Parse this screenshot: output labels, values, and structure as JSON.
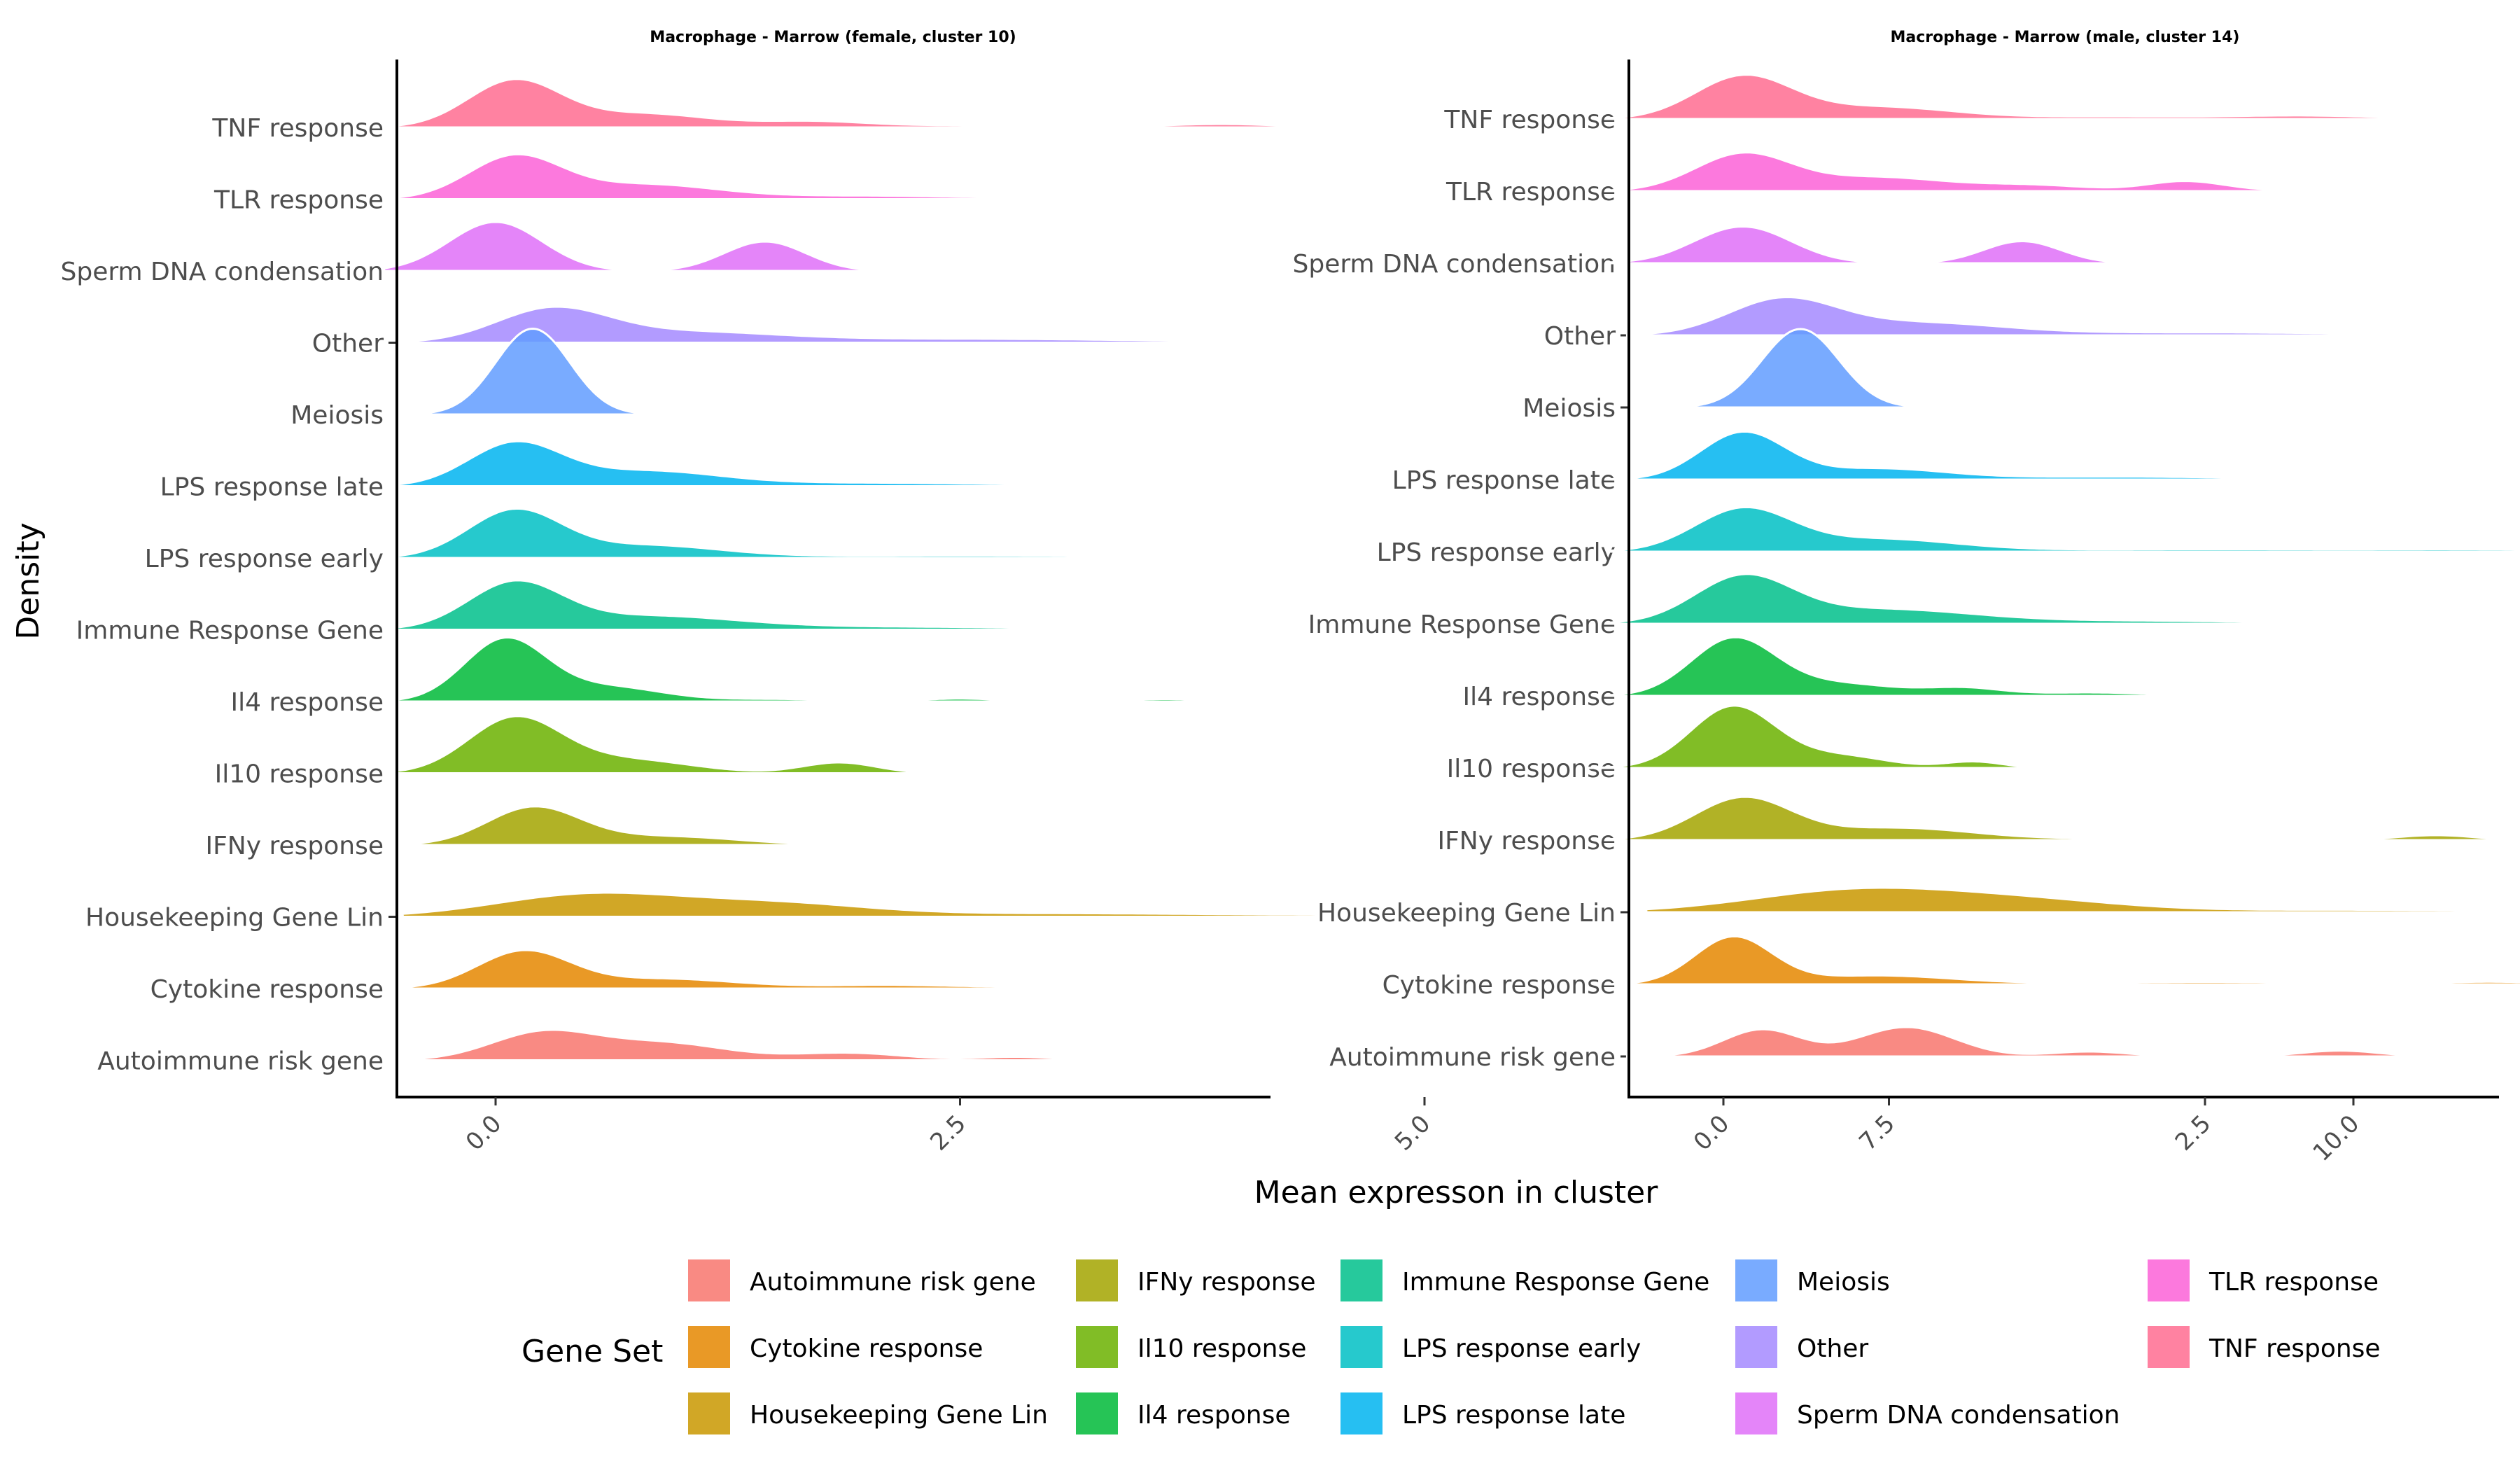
{
  "chart_data": {
    "type": "ridgeline",
    "xlabel": "Mean expresson in cluster",
    "ylabel": "Density",
    "xlim": [
      -1,
      10.5
    ],
    "xticks": [
      "0.0",
      "2.5",
      "5.0",
      "7.5",
      "10.0"
    ],
    "xtick_values": [
      0,
      2.5,
      5,
      7.5,
      10
    ],
    "grid": false,
    "legend": {
      "title": "Gene Set",
      "placement": "bottom",
      "columns": [
        [
          "Autoimmune risk gene",
          "Cytokine response",
          "Housekeeping Gene Lin"
        ],
        [
          "IFNy response",
          "Il10 response",
          "Il4 response"
        ],
        [
          "Immune Response Gene",
          "LPS response early",
          "LPS response late"
        ],
        [
          "Meiosis",
          "Other",
          "Sperm DNA condensation"
        ],
        [
          "TLR response",
          "TNF response"
        ]
      ]
    },
    "categories": [
      "Autoimmune risk gene",
      "Cytokine response",
      "Housekeeping Gene Lin",
      "IFNy response",
      "Il10 response",
      "Il4 response",
      "Immune Response Gene",
      "LPS response early",
      "LPS response late",
      "Meiosis",
      "Other",
      "Sperm DNA condensation",
      "TLR response",
      "TNF response"
    ],
    "colors": {
      "Autoimmune risk gene": "#F8766D",
      "Cytokine response": "#E58700",
      "Housekeeping Gene Lin": "#C99800",
      "IFNy response": "#A3A500",
      "Il10 response": "#6BB100",
      "Il4 response": "#00BA38",
      "Immune Response Gene": "#00C08B",
      "LPS response early": "#00BFC4",
      "LPS response late": "#00B4F0",
      "Meiosis": "#619CFF",
      "Other": "#A58AFF",
      "Sperm DNA condensation": "#DF70F8",
      "TLR response": "#FB61D7",
      "TNF response": "#FF6C91"
    },
    "panels": [
      {
        "title": "Macrophage - Marrow (female, cluster 10)",
        "series": [
          {
            "name": "Autoimmune risk gene",
            "range": [
              -0.6,
              3.3
            ],
            "peaks": [
              [
                0.25,
                0.28,
                0.55
              ],
              [
                0.9,
                0.35,
                0.35
              ],
              [
                1.9,
                0.3,
                0.15
              ],
              [
                2.8,
                0.2,
                0.07
              ]
            ]
          },
          {
            "name": "Cytokine response",
            "range": [
              -0.6,
              4.8
            ],
            "peaks": [
              [
                0.15,
                0.25,
                0.75
              ],
              [
                0.9,
                0.4,
                0.2
              ],
              [
                2.1,
                0.4,
                0.07
              ],
              [
                3.3,
                0.5,
                0.04
              ]
            ]
          },
          {
            "name": "Housekeeping Gene Lin",
            "range": [
              -0.5,
              6.3
            ],
            "peaks": [
              [
                0.5,
                0.5,
                0.45
              ],
              [
                1.5,
                0.5,
                0.25
              ],
              [
                3.0,
                0.9,
                0.07
              ],
              [
                5.0,
                0.8,
                0.03
              ]
            ]
          },
          {
            "name": "IFNy response",
            "range": [
              -0.6,
              8.5
            ],
            "peaks": [
              [
                0.2,
                0.25,
                0.75
              ],
              [
                0.9,
                0.4,
                0.18
              ],
              [
                2.7,
                0.2,
                0.04
              ],
              [
                4.0,
                0.2,
                0.025
              ],
              [
                6.2,
                0.25,
                0.03
              ]
            ]
          },
          {
            "name": "Il10 response",
            "range": [
              -0.6,
              2.5
            ],
            "peaks": [
              [
                0.1,
                0.25,
                1.1
              ],
              [
                0.7,
                0.35,
                0.28
              ],
              [
                1.85,
                0.2,
                0.22
              ]
            ]
          },
          {
            "name": "Il4 response",
            "range": [
              -0.6,
              4.0
            ],
            "peaks": [
              [
                0.05,
                0.22,
                1.25
              ],
              [
                0.6,
                0.3,
                0.3
              ],
              [
                1.5,
                0.3,
                0.05
              ],
              [
                2.5,
                0.2,
                0.06
              ],
              [
                3.6,
                0.2,
                0.05
              ]
            ]
          },
          {
            "name": "Immune Response Gene",
            "range": [
              -0.6,
              4.3
            ],
            "peaks": [
              [
                0.1,
                0.25,
                0.9
              ],
              [
                0.8,
                0.5,
                0.28
              ],
              [
                2.2,
                0.7,
                0.06
              ]
            ]
          },
          {
            "name": "LPS response early",
            "range": [
              -0.6,
              5.5
            ],
            "peaks": [
              [
                0.1,
                0.25,
                0.95
              ],
              [
                0.8,
                0.4,
                0.25
              ],
              [
                2.5,
                1.0,
                0.05
              ],
              [
                4.5,
                0.6,
                0.02
              ]
            ]
          },
          {
            "name": "LPS response late",
            "range": [
              -0.6,
              4.8
            ],
            "peaks": [
              [
                0.1,
                0.25,
                0.85
              ],
              [
                0.8,
                0.4,
                0.3
              ],
              [
                2.0,
                0.7,
                0.07
              ],
              [
                4.0,
                0.6,
                0.03
              ]
            ]
          },
          {
            "name": "Meiosis",
            "range": [
              -0.6,
              1.0
            ],
            "peaks": [
              [
                0.2,
                0.2,
                1.75
              ]
            ]
          },
          {
            "name": "Other",
            "range": [
              -0.5,
              5.8
            ],
            "peaks": [
              [
                0.3,
                0.3,
                0.65
              ],
              [
                1.0,
                0.5,
                0.2
              ],
              [
                2.5,
                1.0,
                0.08
              ]
            ]
          },
          {
            "name": "Sperm DNA condensation",
            "range": [
              -0.6,
              2.1
            ],
            "peaks": [
              [
                0.0,
                0.25,
                1.0
              ],
              [
                1.45,
                0.22,
                0.6
              ]
            ]
          },
          {
            "name": "TLR response",
            "range": [
              -0.6,
              5.3
            ],
            "peaks": [
              [
                0.1,
                0.25,
                0.85
              ],
              [
                0.8,
                0.4,
                0.3
              ],
              [
                2.0,
                0.5,
                0.07
              ],
              [
                3.5,
                0.5,
                0.04
              ],
              [
                4.5,
                0.4,
                0.03
              ]
            ]
          },
          {
            "name": "TNF response",
            "range": [
              -0.6,
              5.3
            ],
            "peaks": [
              [
                0.1,
                0.25,
                0.95
              ],
              [
                0.8,
                0.35,
                0.28
              ],
              [
                1.7,
                0.3,
                0.12
              ],
              [
                2.5,
                0.4,
                0.04
              ],
              [
                3.9,
                0.3,
                0.07
              ]
            ]
          }
        ]
      },
      {
        "title": "Macrophage - Marrow (male, cluster 14)",
        "series": [
          {
            "name": "Autoimmune risk gene",
            "range": [
              -0.5,
              6.9
            ],
            "peaks": [
              [
                0.2,
                0.2,
                0.55
              ],
              [
                0.95,
                0.25,
                0.6
              ],
              [
                1.9,
                0.2,
                0.1
              ],
              [
                3.2,
                0.2,
                0.12
              ],
              [
                6.5,
                0.2,
                0.12
              ]
            ]
          },
          {
            "name": "Cytokine response",
            "range": [
              -0.6,
              5.1
            ],
            "peaks": [
              [
                0.05,
                0.2,
                0.95
              ],
              [
                0.8,
                0.4,
                0.18
              ],
              [
                2.5,
                0.6,
                0.05
              ],
              [
                4.0,
                0.3,
                0.05
              ]
            ]
          },
          {
            "name": "Housekeeping Gene Lin",
            "range": [
              -0.4,
              5.8
            ],
            "peaks": [
              [
                0.7,
                0.55,
                0.45
              ],
              [
                1.6,
                0.5,
                0.2
              ],
              [
                3.3,
                0.9,
                0.05
              ]
            ]
          },
          {
            "name": "IFNy response",
            "range": [
              -0.6,
              5.5
            ],
            "peaks": [
              [
                0.1,
                0.25,
                0.85
              ],
              [
                0.9,
                0.4,
                0.25
              ],
              [
                2.3,
                0.5,
                0.04
              ],
              [
                3.7,
                0.2,
                0.1
              ]
            ]
          },
          {
            "name": "Il10 response",
            "range": [
              -0.7,
              1.7
            ],
            "peaks": [
              [
                0.05,
                0.22,
                1.25
              ],
              [
                0.6,
                0.25,
                0.25
              ],
              [
                1.3,
                0.15,
                0.13
              ]
            ]
          },
          {
            "name": "Il4 response",
            "range": [
              -0.6,
              2.8
            ],
            "peaks": [
              [
                0.05,
                0.22,
                1.15
              ],
              [
                0.6,
                0.3,
                0.25
              ],
              [
                1.25,
                0.2,
                0.15
              ],
              [
                1.9,
                0.3,
                0.07
              ]
            ]
          },
          {
            "name": "Immune Response Gene",
            "range": [
              -0.6,
              3.9
            ],
            "peaks": [
              [
                0.1,
                0.25,
                0.9
              ],
              [
                0.8,
                0.5,
                0.3
              ],
              [
                2.2,
                0.6,
                0.06
              ]
            ]
          },
          {
            "name": "LPS response early",
            "range": [
              -0.6,
              5.0
            ],
            "peaks": [
              [
                0.1,
                0.25,
                0.85
              ],
              [
                0.8,
                0.4,
                0.25
              ],
              [
                2.5,
                1.0,
                0.05
              ],
              [
                4.0,
                0.5,
                0.03
              ]
            ]
          },
          {
            "name": "LPS response late",
            "range": [
              -0.6,
              5.1
            ],
            "peaks": [
              [
                0.1,
                0.22,
                0.95
              ],
              [
                0.8,
                0.35,
                0.22
              ],
              [
                2.0,
                0.6,
                0.06
              ],
              [
                3.5,
                0.6,
                0.02
              ]
            ]
          },
          {
            "name": "Meiosis",
            "range": [
              -0.3,
              1.1
            ],
            "peaks": [
              [
                0.4,
                0.2,
                1.6
              ]
            ]
          },
          {
            "name": "Other",
            "range": [
              -0.5,
              4.3
            ],
            "peaks": [
              [
                0.3,
                0.28,
                0.7
              ],
              [
                1.0,
                0.45,
                0.25
              ],
              [
                2.5,
                0.8,
                0.06
              ]
            ]
          },
          {
            "name": "Sperm DNA condensation",
            "range": [
              -0.6,
              2.1
            ],
            "peaks": [
              [
                0.1,
                0.25,
                0.75
              ],
              [
                1.55,
                0.2,
                0.45
              ]
            ]
          },
          {
            "name": "TLR response",
            "range": [
              -0.6,
              5.0
            ],
            "peaks": [
              [
                0.1,
                0.25,
                0.75
              ],
              [
                0.8,
                0.35,
                0.28
              ],
              [
                1.6,
                0.3,
                0.12
              ],
              [
                2.4,
                0.2,
                0.2
              ],
              [
                3.5,
                0.5,
                0.04
              ]
            ]
          },
          {
            "name": "TNF response",
            "range": [
              -0.6,
              8.0
            ],
            "peaks": [
              [
                0.1,
                0.25,
                0.85
              ],
              [
                0.8,
                0.4,
                0.25
              ],
              [
                2.0,
                0.4,
                0.05
              ],
              [
                3.0,
                0.4,
                0.07
              ],
              [
                5.5,
                0.2,
                0.05
              ]
            ]
          }
        ]
      }
    ]
  }
}
